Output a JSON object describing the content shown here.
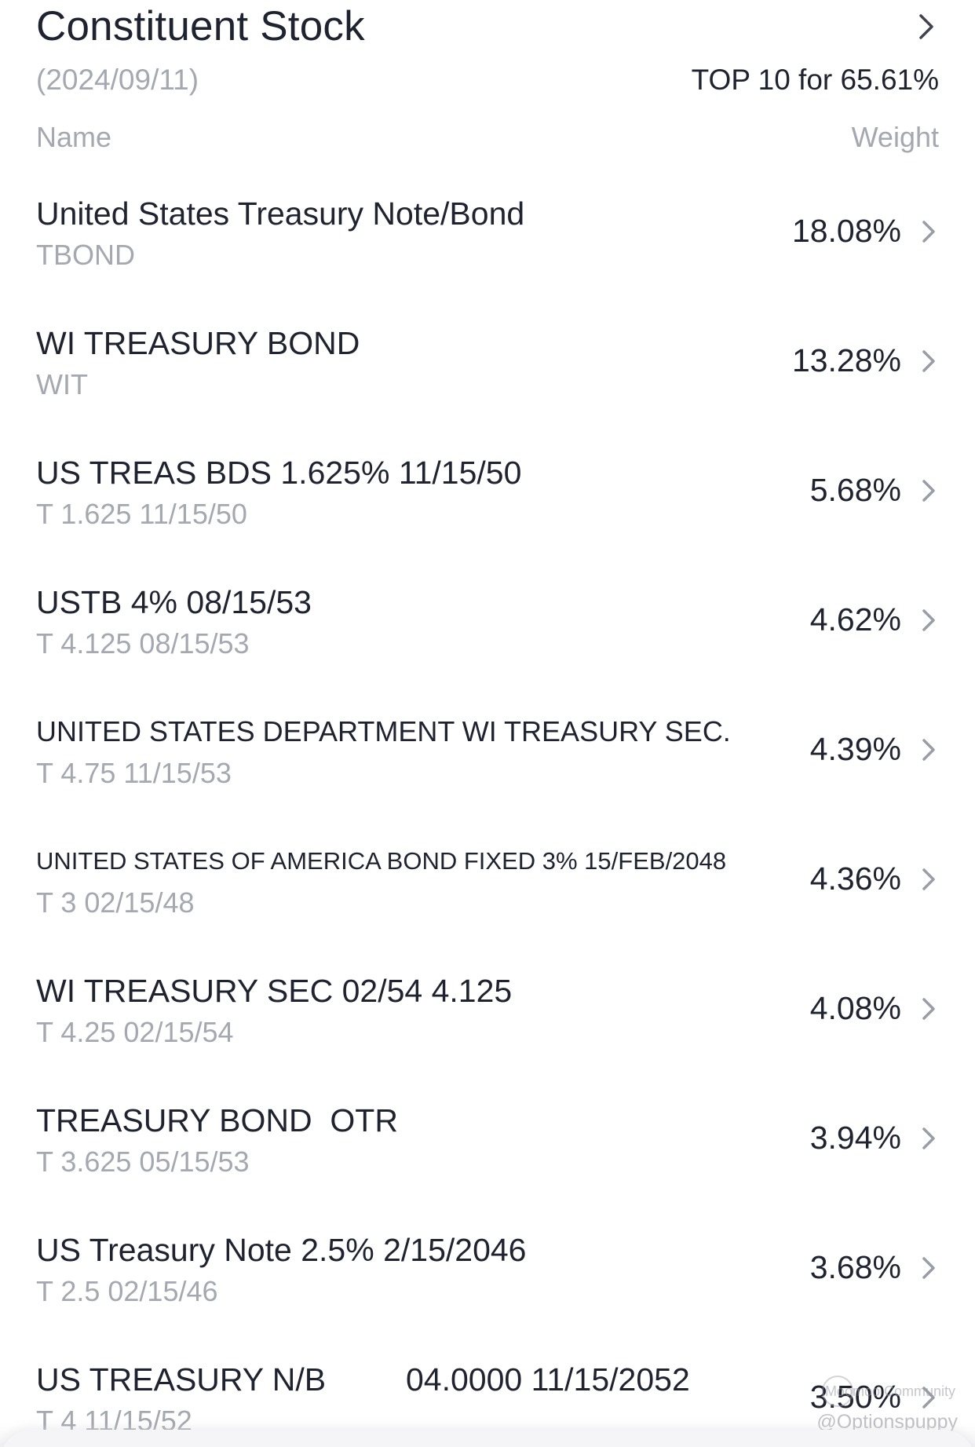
{
  "header": {
    "title": "Constituent Stock",
    "date": "(2024/09/11)",
    "top10": "TOP 10 for 65.61%",
    "col_name": "Name",
    "col_weight": "Weight"
  },
  "holdings": [
    {
      "name": "United States Treasury Note/Bond",
      "code": "TBOND",
      "weight": "18.08%"
    },
    {
      "name": "WI TREASURY BOND",
      "code": "WIT",
      "weight": "13.28%"
    },
    {
      "name": "US TREAS BDS 1.625% 11/15/50",
      "code": "T 1.625 11/15/50",
      "weight": "5.68%"
    },
    {
      "name": "USTB 4% 08/15/53",
      "code": "T 4.125 08/15/53",
      "weight": "4.62%"
    },
    {
      "name": "UNITED STATES DEPARTMENT WI TREASURY SEC.",
      "code": "T 4.75 11/15/53",
      "weight": "4.39%"
    },
    {
      "name": "UNITED STATES OF AMERICA BOND FIXED 3% 15/FEB/2048",
      "code": "T 3 02/15/48",
      "weight": "4.36%"
    },
    {
      "name": "WI TREASURY SEC 02/54 4.125",
      "code": "T 4.25 02/15/54",
      "weight": "4.08%"
    },
    {
      "name": "TREASURY BOND  OTR",
      "code": "T 3.625 05/15/53",
      "weight": "3.94%"
    },
    {
      "name": "US Treasury Note 2.5% 2/15/2046",
      "code": "T 2.5 02/15/46",
      "weight": "3.68%"
    },
    {
      "name": "US TREASURY N/B",
      "name_extra": "04.0000 11/15/2052",
      "code": "T 4 11/15/52",
      "weight": "3.50%"
    }
  ],
  "watermark": {
    "line1": "Moomoo Community",
    "line2": "@Optionspuppy"
  },
  "icons": {
    "header_chevron": "chevron-right-icon",
    "row_chevron": "chevron-right-icon"
  },
  "colors": {
    "text_primary": "#1f2330",
    "text_secondary": "#a6a8b1",
    "chevron": "#9a9ca6",
    "background": "#ffffff"
  }
}
